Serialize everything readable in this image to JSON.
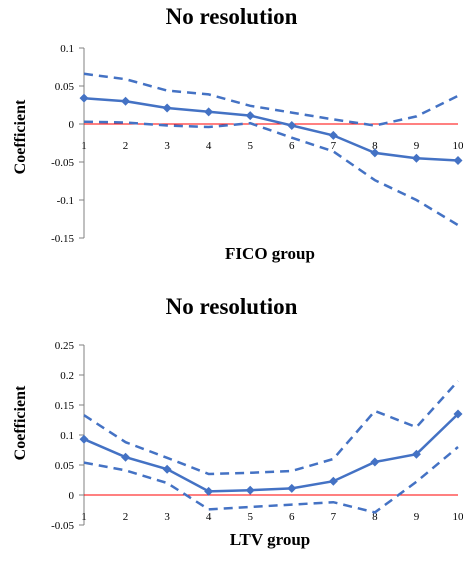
{
  "chart_data": [
    {
      "type": "line",
      "title": "No resolution",
      "xlabel": "FICO group",
      "ylabel": "Coefficient",
      "x": [
        1,
        2,
        3,
        4,
        5,
        6,
        7,
        8,
        9,
        10
      ],
      "x_tick_labels": [
        "1",
        "2",
        "3",
        "4",
        "5",
        "6",
        "7",
        "8",
        "9",
        "10"
      ],
      "ylim": [
        -0.15,
        0.1
      ],
      "y_ticks": [
        0.1,
        0.05,
        0,
        -0.05,
        -0.1,
        -0.15
      ],
      "y_tick_labels": [
        "0.1",
        "0.05",
        "0",
        "-0.05",
        "-0.1",
        "-0.15"
      ],
      "grid": false,
      "zero_line": true,
      "series": [
        {
          "role": "estimate",
          "style": "solid-diamond",
          "values": [
            0.034,
            0.03,
            0.021,
            0.016,
            0.011,
            -0.002,
            -0.015,
            -0.038,
            -0.045,
            -0.048
          ]
        },
        {
          "role": "upper",
          "style": "dashed",
          "values": [
            0.066,
            0.059,
            0.044,
            0.039,
            0.024,
            0.015,
            0.006,
            -0.002,
            0.01,
            0.037
          ]
        },
        {
          "role": "lower",
          "style": "dashed",
          "values": [
            0.003,
            0.002,
            -0.002,
            -0.004,
            0.001,
            -0.018,
            -0.036,
            -0.074,
            -0.1,
            -0.133
          ]
        }
      ],
      "colors": {
        "line": "#4472c4",
        "zero_line": "#ff0000"
      }
    },
    {
      "type": "line",
      "title": "No resolution",
      "xlabel": "LTV group",
      "ylabel": "Coefficient",
      "x": [
        1,
        2,
        3,
        4,
        5,
        6,
        7,
        8,
        9,
        10
      ],
      "x_tick_labels": [
        "1",
        "2",
        "3",
        "4",
        "5",
        "6",
        "7",
        "8",
        "9",
        "10"
      ],
      "ylim": [
        -0.05,
        0.25
      ],
      "y_ticks": [
        0.25,
        0.2,
        0.15,
        0.1,
        0.05,
        0,
        -0.05
      ],
      "y_tick_labels": [
        "0.25",
        "0.2",
        "0.15",
        "0.1",
        "0.05",
        "0",
        "-0.05"
      ],
      "grid": false,
      "zero_line": true,
      "series": [
        {
          "role": "estimate",
          "style": "solid-diamond",
          "values": [
            0.093,
            0.063,
            0.043,
            0.006,
            0.008,
            0.011,
            0.023,
            0.055,
            0.068,
            0.135
          ]
        },
        {
          "role": "upper",
          "style": "dashed",
          "values": [
            0.133,
            0.088,
            0.062,
            0.035,
            0.037,
            0.04,
            0.06,
            0.14,
            0.113,
            0.19
          ]
        },
        {
          "role": "lower",
          "style": "dashed",
          "values": [
            0.054,
            0.041,
            0.02,
            -0.024,
            -0.02,
            -0.016,
            -0.012,
            -0.029,
            0.022,
            0.08
          ]
        }
      ],
      "colors": {
        "line": "#4472c4",
        "zero_line": "#ff0000"
      }
    }
  ]
}
